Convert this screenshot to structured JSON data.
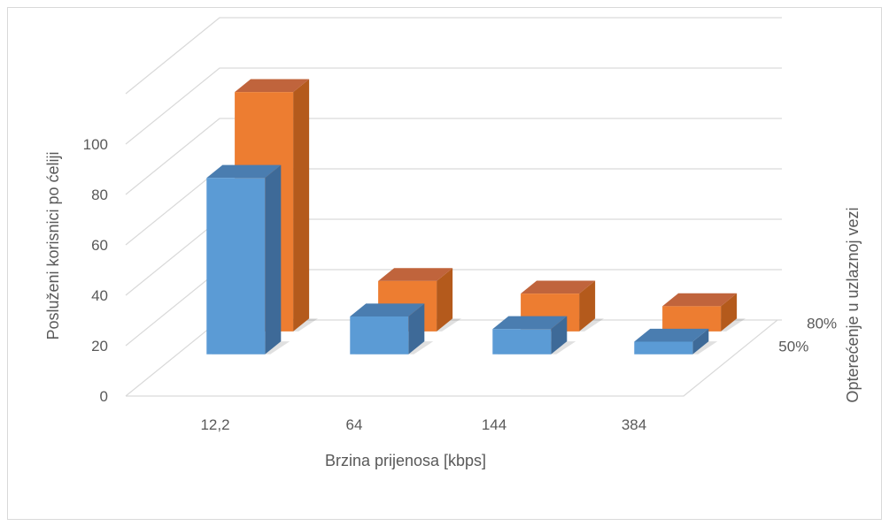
{
  "chart_data": {
    "type": "bar",
    "variant": "3d-column",
    "title": "",
    "xlabel": "Brzina prijenosa [kbps]",
    "ylabel": "Posluženi korisnici po ćeliji",
    "zlabel": "Opterećenje u uzlaznoj vezi",
    "categories": [
      "12,2",
      "64",
      "144",
      "384"
    ],
    "y_ticks": [
      "0",
      "20",
      "40",
      "60",
      "80",
      "100"
    ],
    "ylim": [
      0,
      120
    ],
    "grid": true,
    "series": [
      {
        "name": "50%",
        "values": [
          70,
          15,
          10,
          5
        ],
        "color": "#5B9BD5"
      },
      {
        "name": "80%",
        "values": [
          95,
          20,
          15,
          10
        ],
        "color": "#ED7D31"
      }
    ],
    "colors": {
      "series_50_front": "#5B9BD5",
      "series_50_top": "#4A7DB0",
      "series_50_side": "#3E6A98",
      "series_80_front": "#ED7D31",
      "series_80_top": "#C0643C",
      "series_80_side": "#B45A1C",
      "gridline": "#d9d9d9",
      "text": "#595959"
    }
  }
}
